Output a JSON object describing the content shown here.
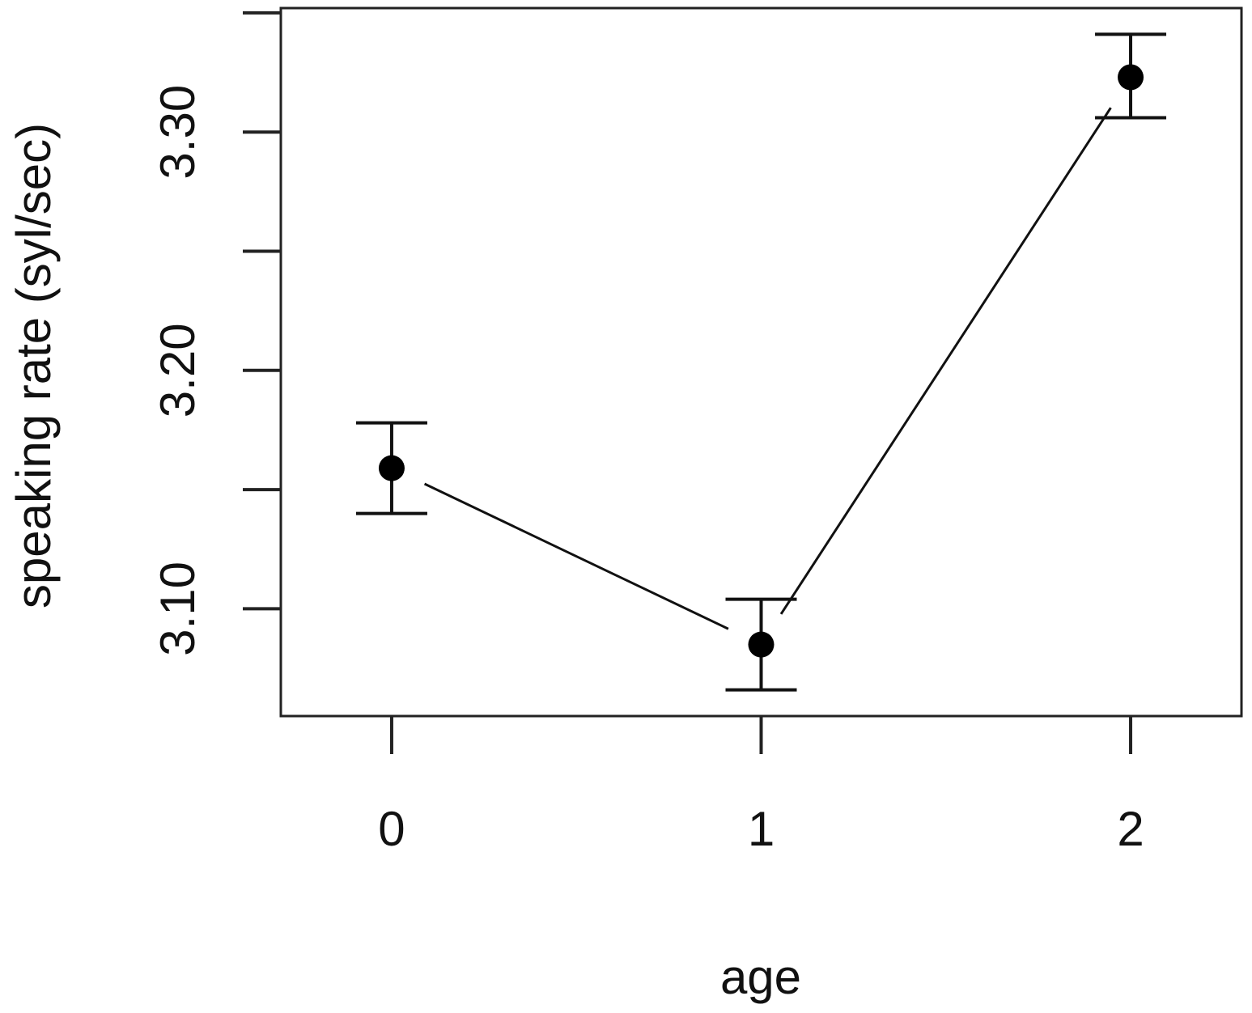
{
  "chart_data": {
    "type": "line",
    "title": "",
    "xlabel": "age",
    "ylabel": "speaking rate (syl/sec)",
    "x_ticks": [
      "0",
      "1",
      "2"
    ],
    "y_ticks": [
      "3.10",
      "3.20",
      "3.30"
    ],
    "y_minor_ticks": [
      3.15,
      3.25,
      3.35
    ],
    "xlim": [
      -0.3,
      2.3
    ],
    "ylim": [
      3.055,
      3.352
    ],
    "grid": false,
    "series": [
      {
        "x": [
          0,
          1,
          2
        ],
        "y": [
          3.159,
          3.085,
          3.323
        ],
        "err_low": [
          3.14,
          3.066,
          3.306
        ],
        "err_high": [
          3.178,
          3.104,
          3.341
        ]
      }
    ],
    "colors": {
      "line": "#111111",
      "point": "#000000",
      "axis": "#222222"
    }
  }
}
